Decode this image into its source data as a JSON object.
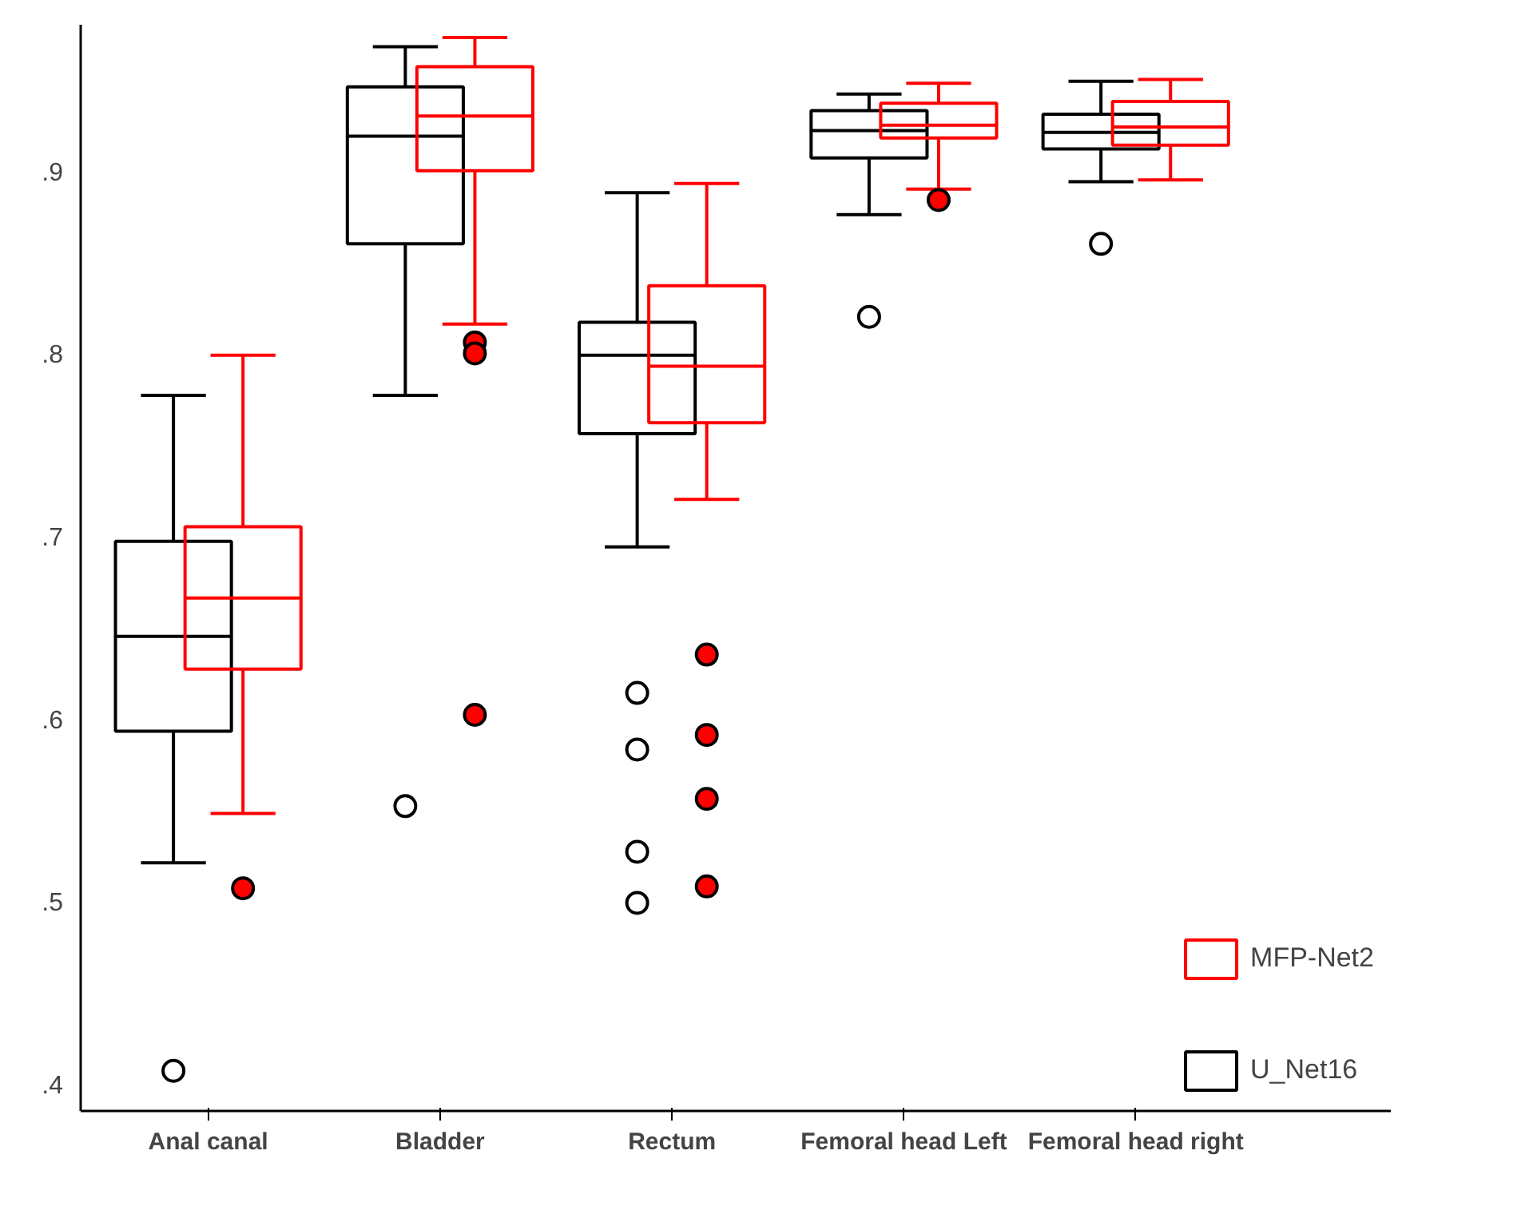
{
  "chart_data": {
    "type": "box",
    "categories": [
      "Anal canal",
      "Bladder",
      "Rectum",
      "Femoral head Left",
      "Femoral head right"
    ],
    "ylim": [
      0.385,
      0.98
    ],
    "yticks": [
      {
        "value": 0.4,
        "label": ".4"
      },
      {
        "value": 0.5,
        "label": ".5"
      },
      {
        "value": 0.6,
        "label": ".6"
      },
      {
        "value": 0.7,
        "label": ".7"
      },
      {
        "value": 0.8,
        "label": ".8"
      },
      {
        "value": 0.9,
        "label": ".9"
      }
    ],
    "grid": false,
    "legend": "bottom right",
    "marker": "circle",
    "series": [
      {
        "name": "U_Net16",
        "color": "#000000",
        "boxes": [
          {
            "low": 0.521,
            "q1": 0.593,
            "median": 0.645,
            "q3": 0.697,
            "high": 0.777,
            "outliers": [
              0.407
            ]
          },
          {
            "low": 0.777,
            "q1": 0.86,
            "median": 0.919,
            "q3": 0.946,
            "high": 0.968,
            "outliers": [
              0.552
            ]
          },
          {
            "low": 0.694,
            "q1": 0.756,
            "median": 0.799,
            "q3": 0.817,
            "high": 0.888,
            "outliers": [
              0.614,
              0.583,
              0.527,
              0.499
            ]
          },
          {
            "low": 0.876,
            "q1": 0.907,
            "median": 0.922,
            "q3": 0.933,
            "high": 0.942,
            "outliers": [
              0.82
            ]
          },
          {
            "low": 0.894,
            "q1": 0.912,
            "median": 0.921,
            "q3": 0.931,
            "high": 0.949,
            "outliers": [
              0.86
            ]
          }
        ]
      },
      {
        "name": "MFP-Net2",
        "color": "#ff0000",
        "boxes": [
          {
            "low": 0.548,
            "q1": 0.627,
            "median": 0.666,
            "q3": 0.705,
            "high": 0.799,
            "outliers": [
              0.507
            ]
          },
          {
            "low": 0.816,
            "q1": 0.9,
            "median": 0.93,
            "q3": 0.957,
            "high": 0.973,
            "outliers": [
              0.806,
              0.8,
              0.602
            ]
          },
          {
            "low": 0.72,
            "q1": 0.762,
            "median": 0.793,
            "q3": 0.837,
            "high": 0.893,
            "outliers": [
              0.635,
              0.591,
              0.556,
              0.508
            ]
          },
          {
            "low": 0.89,
            "q1": 0.918,
            "median": 0.925,
            "q3": 0.937,
            "high": 0.948,
            "outliers": [
              0.884
            ]
          },
          {
            "low": 0.895,
            "q1": 0.914,
            "median": 0.924,
            "q3": 0.938,
            "high": 0.95
          }
        ]
      }
    ]
  }
}
